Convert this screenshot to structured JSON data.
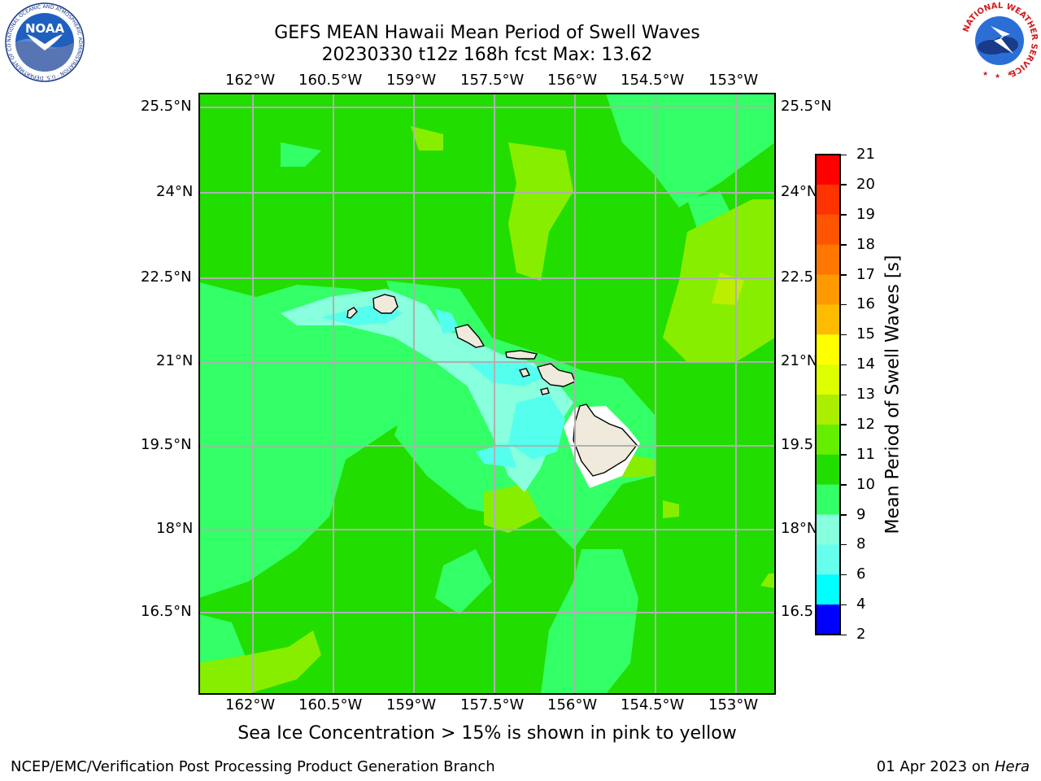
{
  "title": {
    "line1": "GEFS MEAN Hawaii Mean Period of Swell Waves",
    "line2": "20230330 t12z 168h fcst   Max: 13.62"
  },
  "axes": {
    "lon_ticks": [
      "162°W",
      "160.5°W",
      "159°W",
      "157.5°W",
      "156°W",
      "154.5°W",
      "153°W"
    ],
    "lat_ticks": [
      "25.5°N",
      "24°N",
      "22.5°N",
      "21°N",
      "19.5°N",
      "18°N",
      "16.5°N"
    ]
  },
  "colorbar": {
    "label": "Mean Period of Swell Waves [s]",
    "tick_labels": [
      "21",
      "20",
      "19",
      "18",
      "17",
      "16",
      "15",
      "14",
      "13",
      "12",
      "11",
      "10",
      "9",
      "8",
      "6",
      "4",
      "2"
    ],
    "colors_top_to_bottom": [
      "#ff0000",
      "#ff3300",
      "#ff5500",
      "#ff7700",
      "#ff9900",
      "#ffbb00",
      "#ffff00",
      "#ddff00",
      "#aaee00",
      "#66ee00",
      "#22dd00",
      "#33ff66",
      "#88ffdd",
      "#66ffee",
      "#00ffff",
      "#0077ff",
      "#0000ff"
    ]
  },
  "chart_data": {
    "type": "heatmap",
    "title": "GEFS MEAN Hawaii Mean Period of Swell Waves",
    "subtitle": "20230330 t12z 168h fcst   Max: 13.62",
    "xlabel": "",
    "ylabel": "",
    "variable": "Mean Period of Swell Waves [s]",
    "max_value": 13.62,
    "lon_range": [
      -163,
      -152.2
    ],
    "lat_range": [
      15.4,
      25.7
    ],
    "colorbar_levels": [
      2,
      4,
      6,
      8,
      9,
      10,
      11,
      12,
      13,
      14,
      15,
      16,
      17,
      18,
      19,
      20,
      21
    ],
    "grid": true,
    "dominant_range_s": [
      10,
      12
    ],
    "short_period_region": "lee (west) of the main Hawaiian Islands, 6–10 s",
    "longer_period_patches": "12–13.6 s, mostly north-east and south-west"
  },
  "note": "Sea Ice Concentration > 15% is shown in pink to yellow",
  "footer": {
    "left": "NCEP/EMC/Verification Post Processing Product Generation Branch",
    "date": "01 Apr 2023 on",
    "host": "Hera"
  },
  "logos": {
    "noaa": "NOAA",
    "noaa_ring": "NATIONAL OCEANIC AND ATMOSPHERIC ADMINISTRATION · U.S. DEPARTMENT OF COMMERCE ·",
    "nws_ring": "NATIONAL WEATHER SERVICE"
  }
}
